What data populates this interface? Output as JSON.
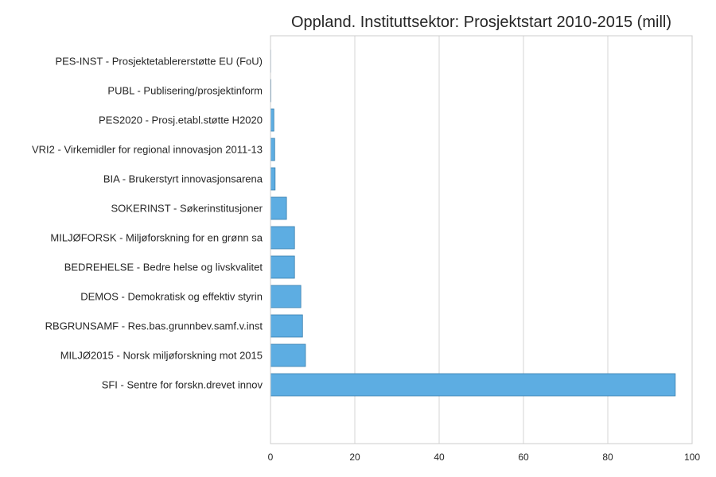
{
  "chart_data": {
    "type": "bar",
    "orientation": "horizontal",
    "title": "Oppland. Instituttsektor: Prosjektstart 2010-2015 (mill)",
    "xlabel": "",
    "ylabel": "",
    "xlim": [
      0,
      100
    ],
    "xticks": [
      0,
      20,
      40,
      60,
      80,
      100
    ],
    "grid": true,
    "bar_color": "#5dade2",
    "bar_edge_color": "#3a7fae",
    "categories": [
      "PES-INST - Prosjektetablererstøtte EU (FoU)",
      "PUBL - Publisering/prosjektinform",
      "PES2020 - Prosj.etabl.støtte H2020",
      "VRI2 - Virkemidler for regional innovasjon 2011-13",
      "BIA - Brukerstyrt innovasjonsarena",
      "SOKERINST - Søkerinstitusjoner",
      "MILJØFORSK - Miljøforskning for en grønn sa",
      "BEDREHELSE - Bedre helse og livskvalitet",
      "DEMOS - Demokratisk og effektiv styrin",
      "RBGRUNSAMF - Res.bas.grunnbev.samf.v.inst",
      "MILJØ2015 - Norsk miljøforskning mot 2015",
      "SFI - Sentre for forskn.drevet innov"
    ],
    "values": [
      0.05,
      0.1,
      0.8,
      1.0,
      1.1,
      3.8,
      5.7,
      5.7,
      7.2,
      7.6,
      8.3,
      96.0
    ]
  }
}
